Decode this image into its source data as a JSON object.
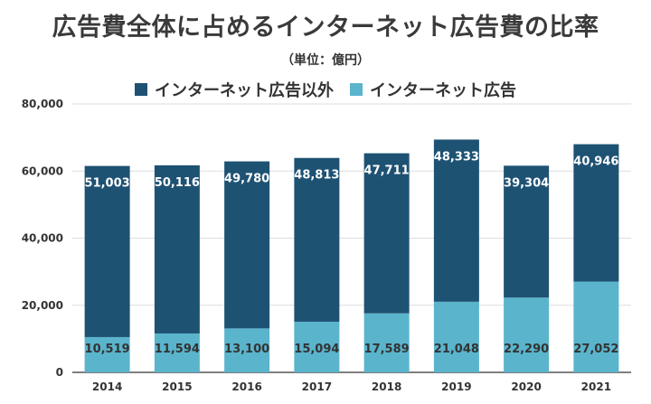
{
  "chart_data": {
    "type": "bar",
    "stacked": true,
    "title": "広告費全体に占めるインターネット広告費の比率",
    "subtitle": "（単位：億円）",
    "categories": [
      "2014",
      "2015",
      "2016",
      "2017",
      "2018",
      "2019",
      "2020",
      "2021"
    ],
    "series": [
      {
        "name": "インターネット広告",
        "color": "#5ab4cc",
        "label_color": "#333333",
        "values": [
          10519,
          11594,
          13100,
          15094,
          17589,
          21048,
          22290,
          27052
        ],
        "labels": [
          "10,519",
          "11,594",
          "13,100",
          "15,094",
          "17,589",
          "21,048",
          "22,290",
          "27,052"
        ]
      },
      {
        "name": "インターネット広告以外",
        "color": "#1e5273",
        "label_color": "#ffffff",
        "values": [
          51003,
          50116,
          49780,
          48813,
          47711,
          48333,
          39304,
          40946
        ],
        "labels": [
          "51,003",
          "50,116",
          "49,780",
          "48,813",
          "47,711",
          "48,333",
          "39,304",
          "40,946"
        ]
      }
    ],
    "legend_order": [
      "インターネット広告以外",
      "インターネット広告"
    ],
    "legend_position": "top",
    "ylim": [
      0,
      80000
    ],
    "yticks": [
      0,
      20000,
      40000,
      60000,
      80000
    ],
    "ytick_labels": [
      "0",
      "20,000",
      "40,000",
      "60,000",
      "80,000"
    ],
    "grid": true,
    "xlabel": "",
    "ylabel": ""
  }
}
